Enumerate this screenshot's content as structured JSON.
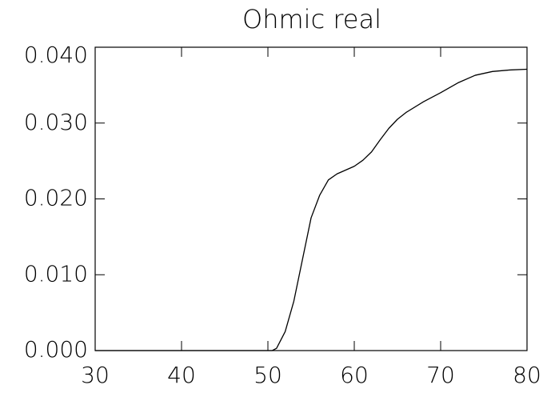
{
  "chart_data": {
    "type": "line",
    "title": "Ohmic real",
    "x": [
      30,
      40,
      50,
      50.5,
      51,
      52,
      53,
      54,
      55,
      56,
      57,
      58,
      59,
      60,
      61,
      62,
      63,
      64,
      65,
      66,
      68,
      70,
      72,
      74,
      76,
      78,
      80
    ],
    "series": [
      {
        "color": "#000000",
        "values": [
          0,
          0,
          0,
          0,
          0.0003,
          0.0025,
          0.0065,
          0.012,
          0.0175,
          0.0205,
          0.0225,
          0.0233,
          0.0238,
          0.0243,
          0.0251,
          0.0262,
          0.0278,
          0.0293,
          0.0305,
          0.0314,
          0.0328,
          0.034,
          0.0353,
          0.0363,
          0.0368,
          0.037,
          0.0371
        ]
      }
    ],
    "xlim": [
      30,
      80
    ],
    "xticks": [
      30,
      40,
      50,
      60,
      70,
      80
    ],
    "ylim": [
      0,
      0.04
    ],
    "yticks": [
      {
        "value": 0,
        "label": "0.000"
      },
      {
        "value": 0.01,
        "label": "0.010"
      },
      {
        "value": 0.02,
        "label": "0.020"
      },
      {
        "value": 0.03,
        "label": "0.030"
      },
      {
        "value": 0.04,
        "label": "0.040"
      }
    ]
  }
}
